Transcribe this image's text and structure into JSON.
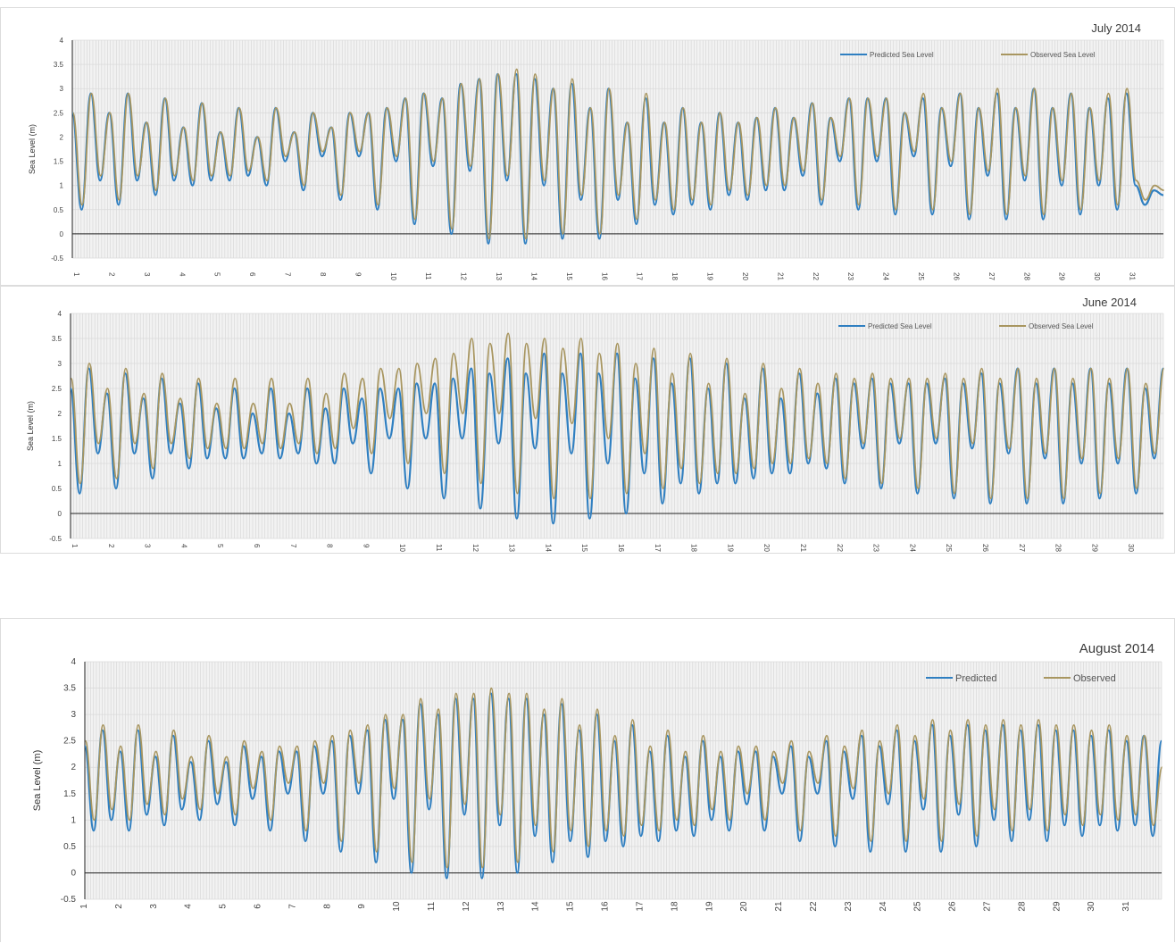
{
  "chart_data": [
    {
      "id": "july",
      "type": "line",
      "title": "July 2014",
      "ylabel": "Sea Level (m)",
      "xlabel": "",
      "ylim": [
        -0.5,
        4
      ],
      "yticks": [
        -0.5,
        0,
        0.5,
        1,
        1.5,
        2,
        2.5,
        3,
        3.5,
        4
      ],
      "ytick_labels": [
        "-0.5",
        "0",
        "0.5",
        "1",
        "1.5",
        "2",
        "2.5",
        "3",
        "3.5",
        "4"
      ],
      "xticks": [
        "1",
        "2",
        "3",
        "4",
        "5",
        "6",
        "7",
        "8",
        "9",
        "10",
        "11",
        "12",
        "13",
        "14",
        "15",
        "16",
        "17",
        "18",
        "19",
        "20",
        "21",
        "22",
        "23",
        "24",
        "25",
        "26",
        "27",
        "28",
        "29",
        "30",
        "31"
      ],
      "grid": true,
      "legend_position": "top-right",
      "colors": {
        "predicted": "#2f7fc1",
        "observed": "#a89660"
      },
      "series": [
        {
          "name": "Predicted Sea Level",
          "x": "daily peaks (day of month)",
          "high_tides": [
            2.5,
            2.9,
            2.5,
            2.9,
            2.3,
            2.8,
            2.2,
            2.7,
            2.1,
            2.6,
            2.0,
            2.6,
            2.1,
            2.5,
            2.2,
            2.5,
            2.5,
            2.6,
            2.8,
            2.9,
            2.8,
            3.1,
            3.2,
            3.3,
            3.3,
            3.2,
            3.0,
            3.1,
            2.6,
            3.0,
            2.3,
            2.8,
            2.3,
            2.6,
            2.3,
            2.5,
            2.3,
            2.4,
            2.6,
            2.4,
            2.7,
            2.4,
            2.8,
            2.8,
            2.8,
            2.5,
            2.8,
            2.6,
            2.9,
            2.6,
            2.9,
            2.6,
            3.0,
            2.6,
            2.9,
            2.6,
            2.8,
            2.9
          ],
          "low_tides": [
            0.5,
            1.1,
            0.6,
            1.1,
            0.8,
            1.1,
            1.0,
            1.1,
            1.1,
            1.2,
            1.0,
            1.5,
            0.9,
            1.6,
            0.7,
            1.6,
            0.5,
            1.5,
            0.2,
            1.4,
            0.0,
            1.3,
            -0.2,
            1.1,
            -0.2,
            1.0,
            -0.1,
            0.7,
            -0.1,
            0.7,
            0.2,
            0.6,
            0.4,
            0.6,
            0.5,
            0.8,
            0.7,
            0.9,
            0.9,
            1.2,
            0.6,
            1.5,
            0.5,
            1.5,
            0.4,
            1.6,
            0.4,
            1.4,
            0.3,
            1.2,
            0.3,
            1.1,
            0.3,
            1.0,
            0.4,
            1.0,
            0.5,
            1.0,
            0.6,
            0.9,
            0.8
          ]
        },
        {
          "name": "Observed Sea Level",
          "high_tides": [
            2.5,
            2.9,
            2.5,
            2.9,
            2.3,
            2.8,
            2.2,
            2.7,
            2.1,
            2.6,
            2.0,
            2.6,
            2.1,
            2.5,
            2.2,
            2.5,
            2.5,
            2.6,
            2.8,
            2.9,
            2.8,
            3.1,
            3.2,
            3.3,
            3.4,
            3.3,
            3.0,
            3.2,
            2.6,
            3.0,
            2.3,
            2.9,
            2.3,
            2.6,
            2.3,
            2.5,
            2.3,
            2.4,
            2.6,
            2.4,
            2.7,
            2.4,
            2.8,
            2.8,
            2.8,
            2.5,
            2.9,
            2.6,
            2.9,
            2.6,
            3.0,
            2.6,
            3.0,
            2.6,
            2.9,
            2.6,
            2.9,
            3.0
          ],
          "low_tides": [
            0.6,
            1.2,
            0.7,
            1.2,
            0.9,
            1.2,
            1.1,
            1.2,
            1.2,
            1.3,
            1.1,
            1.6,
            1.0,
            1.7,
            0.8,
            1.7,
            0.6,
            1.6,
            0.3,
            1.5,
            0.1,
            1.4,
            -0.1,
            1.2,
            -0.1,
            1.1,
            0.0,
            0.8,
            0.0,
            0.8,
            0.3,
            0.7,
            0.5,
            0.7,
            0.6,
            0.9,
            0.8,
            1.0,
            1.0,
            1.3,
            0.7,
            1.6,
            0.6,
            1.6,
            0.5,
            1.7,
            0.5,
            1.5,
            0.4,
            1.3,
            0.4,
            1.2,
            0.4,
            1.1,
            0.5,
            1.1,
            0.6,
            1.1,
            0.7,
            1.0,
            0.9
          ]
        }
      ]
    },
    {
      "id": "june",
      "type": "line",
      "title": "June 2014",
      "ylabel": "Sea Level (m)",
      "xlabel": "",
      "ylim": [
        -0.5,
        4
      ],
      "yticks": [
        -0.5,
        0,
        0.5,
        1,
        1.5,
        2,
        2.5,
        3,
        3.5,
        4
      ],
      "ytick_labels": [
        "-0.5",
        "0",
        "0.5",
        "1",
        "1.5",
        "2",
        "2.5",
        "3",
        "3.5",
        "4"
      ],
      "xticks": [
        "1",
        "2",
        "3",
        "4",
        "5",
        "6",
        "7",
        "8",
        "9",
        "10",
        "11",
        "12",
        "13",
        "14",
        "15",
        "16",
        "17",
        "18",
        "19",
        "20",
        "21",
        "22",
        "23",
        "24",
        "25",
        "26",
        "27",
        "28",
        "29",
        "30"
      ],
      "grid": true,
      "legend_position": "top-right",
      "colors": {
        "predicted": "#2f7fc1",
        "observed": "#a89660"
      },
      "series": [
        {
          "name": "Predicted Sea Level",
          "high_tides": [
            2.5,
            2.9,
            2.4,
            2.8,
            2.3,
            2.7,
            2.2,
            2.6,
            2.1,
            2.5,
            2.0,
            2.5,
            2.0,
            2.5,
            2.1,
            2.5,
            2.3,
            2.5,
            2.5,
            2.6,
            2.6,
            2.7,
            2.9,
            2.8,
            3.1,
            2.8,
            3.2,
            2.8,
            3.2,
            2.8,
            3.2,
            2.7,
            3.1,
            2.6,
            3.1,
            2.5,
            3.0,
            2.3,
            2.9,
            2.3,
            2.8,
            2.4,
            2.7,
            2.6,
            2.7,
            2.6,
            2.6,
            2.6,
            2.7,
            2.6,
            2.8,
            2.6,
            2.9,
            2.6,
            2.9,
            2.6,
            2.9,
            2.6,
            2.9,
            2.5,
            2.9
          ],
          "low_tides": [
            0.4,
            1.2,
            0.5,
            1.2,
            0.7,
            1.2,
            0.9,
            1.1,
            1.1,
            1.1,
            1.2,
            1.1,
            1.2,
            1.0,
            1.0,
            1.4,
            0.8,
            1.5,
            0.5,
            1.5,
            0.3,
            1.5,
            0.1,
            1.4,
            -0.1,
            1.3,
            -0.2,
            1.2,
            -0.1,
            1.0,
            0.0,
            0.8,
            0.2,
            0.6,
            0.4,
            0.6,
            0.6,
            0.7,
            0.8,
            0.8,
            1.0,
            0.9,
            0.6,
            1.3,
            0.5,
            1.4,
            0.4,
            1.4,
            0.3,
            1.3,
            0.2,
            1.2,
            0.2,
            1.1,
            0.2,
            1.0,
            0.3,
            1.0,
            0.4,
            1.1
          ]
        },
        {
          "name": "Observed Sea Level",
          "high_tides": [
            2.7,
            3.0,
            2.5,
            2.9,
            2.4,
            2.8,
            2.3,
            2.7,
            2.2,
            2.7,
            2.2,
            2.7,
            2.2,
            2.7,
            2.4,
            2.8,
            2.7,
            2.9,
            2.9,
            3.0,
            3.1,
            3.2,
            3.5,
            3.4,
            3.6,
            3.4,
            3.5,
            3.3,
            3.5,
            3.2,
            3.4,
            3.0,
            3.3,
            2.8,
            3.2,
            2.6,
            3.1,
            2.4,
            3.0,
            2.5,
            2.9,
            2.6,
            2.8,
            2.7,
            2.8,
            2.7,
            2.7,
            2.7,
            2.8,
            2.7,
            2.9,
            2.7,
            2.9,
            2.7,
            2.9,
            2.7,
            2.9,
            2.7,
            2.9,
            2.6,
            2.9
          ],
          "low_tides": [
            0.6,
            1.4,
            0.7,
            1.4,
            0.9,
            1.4,
            1.1,
            1.3,
            1.3,
            1.3,
            1.4,
            1.3,
            1.4,
            1.2,
            1.3,
            1.7,
            1.2,
            1.9,
            1.0,
            2.0,
            0.8,
            2.0,
            0.6,
            2.0,
            0.4,
            1.9,
            0.3,
            1.8,
            0.3,
            1.5,
            0.4,
            1.2,
            0.5,
            0.9,
            0.6,
            0.8,
            0.8,
            0.9,
            1.0,
            1.0,
            1.1,
            1.0,
            0.7,
            1.4,
            0.6,
            1.5,
            0.5,
            1.5,
            0.4,
            1.4,
            0.3,
            1.3,
            0.3,
            1.2,
            0.3,
            1.1,
            0.4,
            1.1,
            0.5,
            1.2
          ]
        }
      ]
    },
    {
      "id": "august",
      "type": "line",
      "title": "August 2014",
      "ylabel": "Sea Level (m)",
      "xlabel": "",
      "ylim": [
        -0.5,
        4
      ],
      "yticks": [
        -0.5,
        0,
        0.5,
        1,
        1.5,
        2,
        2.5,
        3,
        3.5,
        4
      ],
      "ytick_labels": [
        "-0.5",
        "0",
        "0.5",
        "1",
        "1.5",
        "2",
        "2.5",
        "3",
        "3.5",
        "4"
      ],
      "xticks": [
        "1",
        "2",
        "3",
        "4",
        "5",
        "6",
        "7",
        "8",
        "9",
        "10",
        "11",
        "12",
        "13",
        "14",
        "15",
        "16",
        "17",
        "18",
        "19",
        "20",
        "21",
        "22",
        "23",
        "24",
        "25",
        "26",
        "27",
        "28",
        "29",
        "30",
        "31"
      ],
      "grid": true,
      "legend_position": "top-right",
      "colors": {
        "predicted": "#2f7fc1",
        "observed": "#a89660"
      },
      "series": [
        {
          "name": "Predicted",
          "high_tides": [
            2.4,
            2.7,
            2.3,
            2.7,
            2.2,
            2.6,
            2.1,
            2.5,
            2.1,
            2.4,
            2.2,
            2.3,
            2.3,
            2.4,
            2.5,
            2.6,
            2.7,
            2.9,
            2.9,
            3.2,
            3.0,
            3.3,
            3.3,
            3.4,
            3.3,
            3.3,
            3.0,
            3.2,
            2.7,
            3.0,
            2.5,
            2.8,
            2.3,
            2.6,
            2.2,
            2.5,
            2.2,
            2.3,
            2.3,
            2.2,
            2.4,
            2.2,
            2.5,
            2.3,
            2.6,
            2.4,
            2.7,
            2.5,
            2.8,
            2.6,
            2.8,
            2.7,
            2.8,
            2.7,
            2.8,
            2.7,
            2.7,
            2.6,
            2.7,
            2.5,
            2.6,
            2.5
          ],
          "low_tides": [
            0.8,
            1.0,
            0.8,
            1.1,
            0.9,
            1.2,
            1.0,
            1.3,
            0.9,
            1.4,
            0.8,
            1.5,
            0.6,
            1.5,
            0.4,
            1.5,
            0.2,
            1.4,
            0.0,
            1.2,
            -0.1,
            1.1,
            -0.1,
            0.9,
            0.0,
            0.7,
            0.2,
            0.6,
            0.3,
            0.6,
            0.5,
            0.7,
            0.6,
            0.8,
            0.7,
            1.0,
            0.8,
            1.3,
            0.8,
            1.5,
            0.6,
            1.5,
            0.5,
            1.4,
            0.4,
            1.3,
            0.4,
            1.2,
            0.4,
            1.1,
            0.5,
            1.0,
            0.6,
            1.0,
            0.6,
            0.9,
            0.7,
            0.9,
            0.8,
            0.9,
            0.7
          ]
        },
        {
          "name": "Observed",
          "high_tides": [
            2.5,
            2.8,
            2.4,
            2.8,
            2.3,
            2.7,
            2.2,
            2.6,
            2.2,
            2.5,
            2.3,
            2.4,
            2.4,
            2.5,
            2.6,
            2.7,
            2.8,
            3.0,
            3.0,
            3.3,
            3.1,
            3.4,
            3.4,
            3.5,
            3.4,
            3.4,
            3.1,
            3.3,
            2.8,
            3.1,
            2.6,
            2.9,
            2.4,
            2.7,
            2.3,
            2.6,
            2.3,
            2.4,
            2.4,
            2.3,
            2.5,
            2.3,
            2.6,
            2.4,
            2.7,
            2.5,
            2.8,
            2.6,
            2.9,
            2.7,
            2.9,
            2.8,
            2.9,
            2.8,
            2.9,
            2.8,
            2.8,
            2.7,
            2.8,
            2.6,
            2.6,
            2.0
          ],
          "low_tides": [
            1.0,
            1.2,
            1.0,
            1.3,
            1.1,
            1.4,
            1.2,
            1.5,
            1.1,
            1.6,
            1.0,
            1.7,
            0.8,
            1.7,
            0.6,
            1.7,
            0.4,
            1.6,
            0.2,
            1.4,
            0.1,
            1.3,
            0.1,
            1.1,
            0.2,
            0.9,
            0.4,
            0.8,
            0.5,
            0.8,
            0.7,
            0.9,
            0.8,
            1.0,
            0.9,
            1.2,
            1.0,
            1.5,
            1.0,
            1.7,
            0.8,
            1.7,
            0.7,
            1.6,
            0.6,
            1.5,
            0.6,
            1.4,
            0.6,
            1.3,
            0.7,
            1.2,
            0.8,
            1.2,
            0.8,
            1.1,
            0.9,
            1.1,
            1.0,
            1.1,
            0.9
          ]
        }
      ]
    }
  ]
}
